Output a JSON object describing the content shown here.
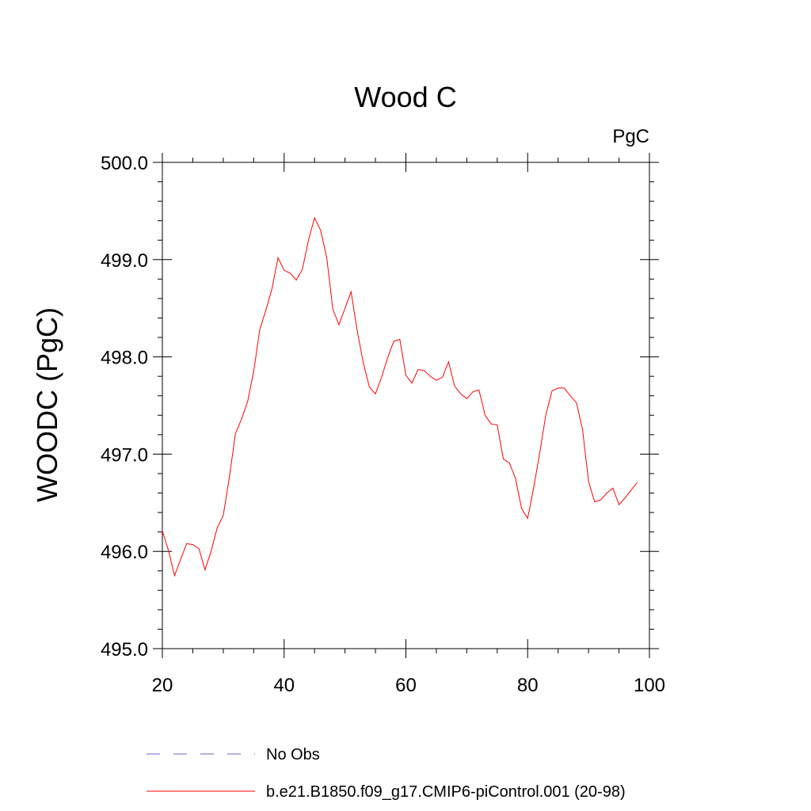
{
  "chart_data": {
    "type": "line",
    "title": "Wood C",
    "units_label": "PgC",
    "ylabel": "WOODC  (PgC)",
    "xlabel": "",
    "xlim": [
      20,
      100
    ],
    "ylim": [
      495.0,
      500.0
    ],
    "xticks": [
      20,
      40,
      60,
      80,
      100
    ],
    "xtick_labels": [
      "20",
      "40",
      "60",
      "80",
      "100"
    ],
    "yticks": [
      495.0,
      496.0,
      497.0,
      498.0,
      499.0,
      500.0
    ],
    "ytick_labels": [
      "495.0",
      "496.0",
      "497.0",
      "498.0",
      "499.0",
      "500.0"
    ],
    "grid": false,
    "legend_position": "bottom",
    "series": [
      {
        "name": "No Obs",
        "color": "#6666cc",
        "style": "dashed",
        "x": [],
        "y": []
      },
      {
        "name": "b.e21.B1850.f09_g17.CMIP6-piControl.001 (20-98)",
        "color": "#ff0000",
        "style": "solid",
        "x": [
          20,
          21,
          22,
          23,
          24,
          25,
          26,
          27,
          28,
          29,
          30,
          31,
          32,
          33,
          34,
          35,
          36,
          37,
          38,
          39,
          40,
          41,
          42,
          43,
          44,
          45,
          46,
          47,
          48,
          49,
          50,
          51,
          52,
          53,
          54,
          55,
          56,
          57,
          58,
          59,
          60,
          61,
          62,
          63,
          64,
          65,
          66,
          67,
          68,
          69,
          70,
          71,
          72,
          73,
          74,
          75,
          76,
          77,
          78,
          79,
          80,
          81,
          82,
          83,
          84,
          85,
          86,
          87,
          88,
          89,
          90,
          91,
          92,
          93,
          94,
          95,
          96,
          97,
          98
        ],
        "y": [
          496.21,
          496.01,
          495.75,
          495.92,
          496.08,
          496.07,
          496.03,
          495.81,
          496.0,
          496.24,
          496.37,
          496.76,
          497.21,
          497.36,
          497.54,
          497.85,
          498.28,
          498.48,
          498.7,
          499.02,
          498.89,
          498.86,
          498.79,
          498.9,
          499.2,
          499.43,
          499.3,
          499.02,
          498.49,
          498.33,
          498.5,
          498.67,
          498.27,
          497.94,
          497.69,
          497.62,
          497.79,
          497.99,
          498.16,
          498.18,
          497.81,
          497.73,
          497.87,
          497.86,
          497.8,
          497.76,
          497.79,
          497.95,
          497.7,
          497.62,
          497.57,
          497.64,
          497.66,
          497.4,
          497.31,
          497.3,
          496.95,
          496.91,
          496.75,
          496.44,
          496.34,
          496.66,
          497.02,
          497.41,
          497.65,
          497.68,
          497.68,
          497.6,
          497.53,
          497.26,
          496.72,
          496.51,
          496.53,
          496.6,
          496.65,
          496.48,
          496.55,
          496.63,
          496.71
        ]
      }
    ]
  }
}
